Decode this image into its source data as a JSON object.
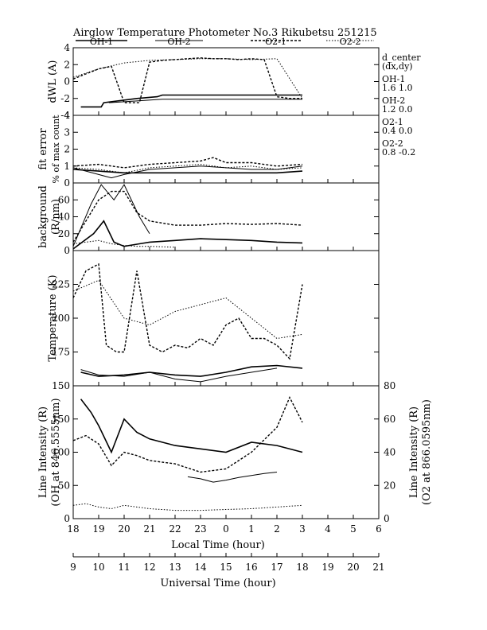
{
  "title": "Airglow Temperature Photometer No.3  Rikubetsu    251215",
  "legend": [
    {
      "name": "OH-1",
      "dash": "",
      "width": 1.6
    },
    {
      "name": "OH-2",
      "dash": "",
      "width": 1.0
    },
    {
      "name": "O2-1",
      "dash": "3,2",
      "width": 1.4
    },
    {
      "name": "O2-2",
      "dash": "1.5,2",
      "width": 1.0
    }
  ],
  "right_notes": [
    {
      "text": "d_center",
      "dy": 0
    },
    {
      "text": "(dx,dy)",
      "dy": 11
    },
    {
      "text": "OH-1",
      "dy": 27
    },
    {
      "text": "1.6   1.0",
      "dy": 38
    },
    {
      "text": "OH-2",
      "dy": 54
    },
    {
      "text": "1.2   0.0",
      "dy": 65
    },
    {
      "text": "O2-1",
      "dy": 81
    },
    {
      "text": "0.4   0.0",
      "dy": 92
    },
    {
      "text": "O2-2",
      "dy": 108
    },
    {
      "text": "0.8   -0.2",
      "dy": 119
    }
  ],
  "x_axis": {
    "local_label": "Local Time (hour)",
    "local_ticks": [
      "18",
      "19",
      "20",
      "21",
      "22",
      "23",
      "0",
      "1",
      "2",
      "3",
      "4",
      "5",
      "6"
    ],
    "ut_label": "Universal Time (hour)",
    "ut_ticks": [
      "9",
      "10",
      "11",
      "12",
      "13",
      "14",
      "15",
      "16",
      "17",
      "18",
      "19",
      "20",
      "21"
    ],
    "range": [
      18,
      30
    ]
  },
  "chart_data": [
    {
      "type": "line",
      "ylabel": "dWL (A)",
      "ylim": [
        -4,
        4
      ],
      "yticks": [
        "-4",
        "-2",
        "0",
        "2",
        "4"
      ],
      "series": [
        {
          "name": "OH-1",
          "x": [
            18.3,
            19.1,
            19.2,
            20.5,
            21.3,
            21.5,
            22.5,
            23.5,
            24.0,
            25.0,
            26.0,
            27.0
          ],
          "y": [
            -3.0,
            -3.0,
            -2.5,
            -2.0,
            -1.8,
            -1.6,
            -1.6,
            -1.6,
            -1.6,
            -1.6,
            -1.6,
            -1.6
          ]
        },
        {
          "name": "OH-2",
          "x": [
            19.4,
            20.5,
            21.5,
            22.5,
            23.5,
            24.0,
            25.0,
            26.0,
            27.0
          ],
          "y": [
            -2.5,
            -2.3,
            -2.1,
            -2.1,
            -2.1,
            -2.1,
            -2.1,
            -2.1,
            -2.1
          ]
        },
        {
          "name": "O2-1",
          "x": [
            18.0,
            18.5,
            19.0,
            19.5,
            20.0,
            20.6,
            21.0,
            21.5,
            22.0,
            22.5,
            23.0,
            23.5,
            24.0,
            24.5,
            25.0,
            25.5,
            26.0,
            26.5,
            27.0
          ],
          "y": [
            0.3,
            0.9,
            1.5,
            1.8,
            -2.5,
            -2.5,
            2.3,
            2.5,
            2.6,
            2.7,
            2.8,
            2.7,
            2.7,
            2.6,
            2.7,
            2.6,
            -1.8,
            -2.0,
            -2.0
          ]
        },
        {
          "name": "O2-2",
          "x": [
            18.0,
            19.0,
            20.0,
            21.0,
            22.0,
            23.0,
            24.0,
            25.0,
            26.0,
            27.0
          ],
          "y": [
            0.5,
            1.5,
            2.2,
            2.5,
            2.6,
            2.7,
            2.7,
            2.6,
            2.7,
            -2.0
          ]
        }
      ]
    },
    {
      "type": "line",
      "ylabel": "fit error",
      "ylabel2": "% of max count",
      "ylim": [
        0,
        4
      ],
      "yticks": [
        "0",
        "1",
        "2",
        "3",
        "4"
      ],
      "series": [
        {
          "name": "OH-1",
          "x": [
            18.0,
            19.0,
            20.0,
            21.0,
            22.0,
            23.0,
            24.0,
            25.0,
            26.0,
            27.0
          ],
          "y": [
            0.8,
            0.7,
            0.6,
            0.6,
            0.6,
            0.6,
            0.6,
            0.6,
            0.6,
            0.7
          ]
        },
        {
          "name": "OH-2",
          "x": [
            18.0,
            19.0,
            19.5,
            20.0,
            21.0,
            22.0,
            23.0,
            24.0,
            25.0,
            26.0,
            27.0
          ],
          "y": [
            0.9,
            0.5,
            0.3,
            0.5,
            0.8,
            0.9,
            1.0,
            0.9,
            0.8,
            0.8,
            1.0
          ]
        },
        {
          "name": "O2-1",
          "x": [
            18.0,
            19.0,
            20.0,
            21.0,
            22.0,
            23.0,
            23.5,
            24.0,
            25.0,
            26.0,
            27.0
          ],
          "y": [
            1.0,
            1.1,
            0.9,
            1.1,
            1.2,
            1.3,
            1.5,
            1.2,
            1.2,
            1.0,
            1.1
          ]
        },
        {
          "name": "O2-2",
          "x": [
            18.0,
            19.0,
            20.0,
            21.0,
            22.0,
            23.0,
            24.0,
            25.0,
            26.0,
            27.0
          ],
          "y": [
            0.9,
            0.8,
            0.6,
            0.9,
            1.0,
            1.1,
            0.9,
            1.0,
            0.8,
            0.9
          ]
        }
      ]
    },
    {
      "type": "line",
      "ylabel": "background",
      "ylabel2": "(R/nm)",
      "ylim": [
        0,
        80
      ],
      "yticks": [
        "0",
        "20",
        "40",
        "60"
      ],
      "series": [
        {
          "name": "OH-1",
          "x": [
            18.0,
            18.8,
            19.2,
            19.6,
            20.0,
            20.6,
            21.0,
            22.0,
            23.0,
            24.0,
            25.0,
            26.0,
            27.0
          ],
          "y": [
            2.0,
            20.0,
            35.0,
            10.0,
            5.0,
            8.0,
            10.0,
            12.0,
            14.0,
            13.0,
            12.0,
            10.0,
            9.0
          ]
        },
        {
          "name": "OH-2",
          "x": [
            18.0,
            18.7,
            19.1,
            19.6,
            20.0,
            20.6,
            21.0
          ],
          "y": [
            5.0,
            55.0,
            78.0,
            60.0,
            78.0,
            40.0,
            20.0
          ]
        },
        {
          "name": "O2-1",
          "x": [
            18.0,
            18.6,
            19.0,
            19.5,
            20.0,
            20.5,
            21.0,
            22.0,
            23.0,
            24.0,
            25.0,
            26.0,
            27.0
          ],
          "y": [
            10.0,
            40.0,
            60.0,
            70.0,
            70.0,
            45.0,
            35.0,
            30.0,
            30.0,
            32.0,
            31.0,
            32.0,
            30.0
          ]
        },
        {
          "name": "O2-2",
          "x": [
            18.0,
            18.5,
            19.0,
            19.5,
            20.0,
            20.5,
            21.0,
            22.0
          ],
          "y": [
            8.0,
            10.0,
            12.0,
            8.0,
            6.0,
            5.0,
            5.0,
            4.0
          ]
        }
      ]
    },
    {
      "type": "line",
      "ylabel": "Temperature (K)",
      "ylim": [
        150,
        250
      ],
      "yticks": [
        "150",
        "175",
        "200",
        "225"
      ],
      "series": [
        {
          "name": "OH-1",
          "x": [
            18.3,
            19.0,
            20.0,
            21.0,
            22.0,
            23.0,
            24.0,
            25.0,
            26.0,
            27.0
          ],
          "y": [
            160.0,
            157.0,
            158.0,
            160.0,
            158.0,
            157.0,
            160.0,
            164.0,
            165.0,
            163.0
          ]
        },
        {
          "name": "OH-2",
          "x": [
            18.3,
            19.0,
            20.0,
            21.0,
            22.0,
            23.0,
            24.0,
            25.0,
            26.0
          ],
          "y": [
            162.0,
            158.0,
            157.0,
            160.0,
            155.0,
            153.0,
            157.0,
            160.0,
            163.0
          ]
        },
        {
          "name": "O2-1",
          "x": [
            18.0,
            18.5,
            19.0,
            19.3,
            19.7,
            20.0,
            20.5,
            21.0,
            21.5,
            22.0,
            22.5,
            23.0,
            23.5,
            24.0,
            24.5,
            25.0,
            25.5,
            26.0,
            26.5,
            27.0
          ],
          "y": [
            215.0,
            235.0,
            240.0,
            180.0,
            175.0,
            175.0,
            235.0,
            180.0,
            175.0,
            180.0,
            178.0,
            185.0,
            180.0,
            195.0,
            200.0,
            185.0,
            185.0,
            180.0,
            170.0,
            225.0
          ]
        },
        {
          "name": "O2-2",
          "x": [
            18.0,
            19.0,
            20.0,
            21.0,
            22.0,
            23.0,
            24.0,
            25.0,
            26.0,
            27.0
          ],
          "y": [
            220.0,
            228.0,
            200.0,
            195.0,
            205.0,
            210.0,
            215.0,
            200.0,
            185.0,
            188.0
          ]
        }
      ]
    },
    {
      "type": "line",
      "ylabel": "Line Intensity (R)",
      "ylabel2": "(OH at 846.5555nm)",
      "ylabel_right": "Line Intensity (R)",
      "ylabel_right2": "(O2 at 866.0595nm)",
      "ylim": [
        0,
        200
      ],
      "yticks": [
        "0",
        "50",
        "100",
        "150"
      ],
      "ylim_right": [
        0,
        80
      ],
      "yticks_right": [
        "0",
        "20",
        "40",
        "60",
        "80"
      ],
      "series": [
        {
          "name": "OH-1",
          "x": [
            18.3,
            18.7,
            19.0,
            19.5,
            20.0,
            20.5,
            21.0,
            22.0,
            23.0,
            24.0,
            25.0,
            26.0,
            27.0
          ],
          "y": [
            180.0,
            160.0,
            140.0,
            100.0,
            150.0,
            130.0,
            120.0,
            110.0,
            105.0,
            100.0,
            115.0,
            110.0,
            100.0
          ]
        },
        {
          "name": "OH-2",
          "x": [
            22.5,
            23.0,
            23.5,
            24.0,
            24.5,
            25.0,
            25.5,
            26.0
          ],
          "y": [
            63.0,
            60.0,
            55.0,
            58.0,
            62.0,
            65.0,
            68.0,
            70.0
          ]
        },
        {
          "name": "O2-1",
          "x": [
            18.0,
            18.5,
            19.0,
            19.5,
            20.0,
            20.5,
            21.0,
            22.0,
            23.0,
            24.0,
            25.0,
            26.0,
            26.5,
            27.0
          ],
          "y": [
            47.0,
            50.0,
            45.0,
            32.0,
            40.0,
            38.0,
            35.0,
            33.0,
            28.0,
            30.0,
            40.0,
            55.0,
            73.0,
            58.0
          ]
        },
        {
          "name": "O2-2",
          "x": [
            18.0,
            18.5,
            19.0,
            19.5,
            20.0,
            21.0,
            22.0,
            23.0,
            24.0,
            25.0,
            26.0,
            27.0
          ],
          "y": [
            8.0,
            9.0,
            7.0,
            6.0,
            8.0,
            6.0,
            5.0,
            5.0,
            5.5,
            6.0,
            7.0,
            8.0
          ]
        }
      ]
    }
  ]
}
